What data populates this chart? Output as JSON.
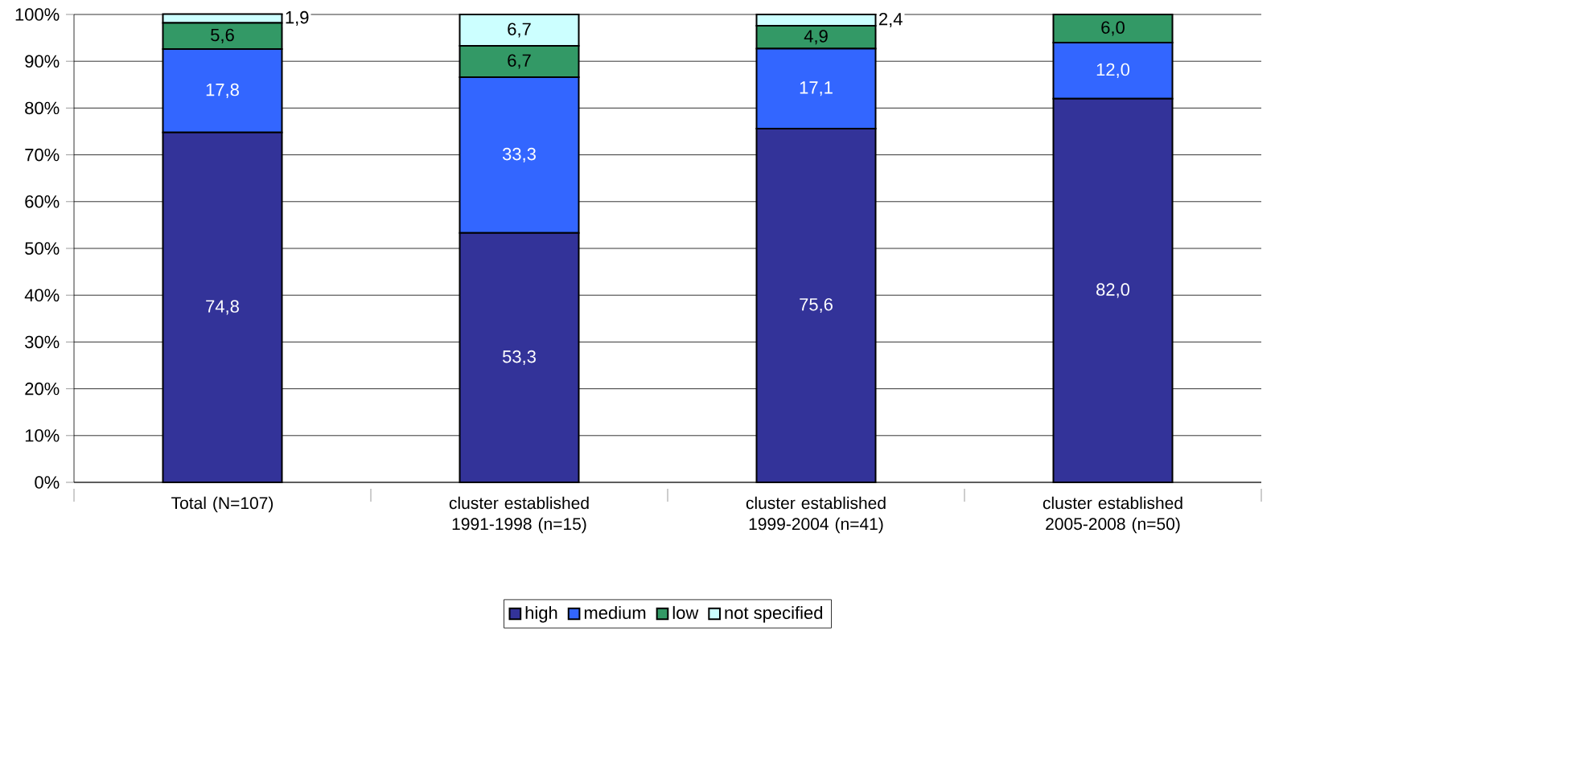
{
  "chart_data": {
    "type": "bar",
    "stacked": true,
    "categories": [
      "Total (N=107)",
      "cluster established 1991-1998 (n=15)",
      "cluster established 1999-2004 (n=41)",
      "cluster established 2005-2008 (n=50)"
    ],
    "series": [
      {
        "name": "high",
        "color": "#333399",
        "values": [
          74.8,
          53.3,
          75.6,
          82.0
        ],
        "value_labels": [
          "74,8",
          "53,3",
          "75,6",
          "82,0"
        ]
      },
      {
        "name": "medium",
        "color": "#3366ff",
        "values": [
          17.8,
          33.3,
          17.1,
          12.0
        ],
        "value_labels": [
          "17,8",
          "33,3",
          "17,1",
          "12,0"
        ]
      },
      {
        "name": "low",
        "color": "#339966",
        "values": [
          5.6,
          6.7,
          4.9,
          6.0
        ],
        "value_labels": [
          "5,6",
          "6,7",
          "4,9",
          "6,0"
        ]
      },
      {
        "name": "not specified",
        "color": "#ccffff",
        "values": [
          1.9,
          6.7,
          2.4,
          null
        ],
        "value_labels": [
          "1,9",
          "6,7",
          "2,4",
          null
        ]
      }
    ],
    "ylim": [
      0,
      100
    ],
    "yticks": [
      {
        "value": 0,
        "label": "0%"
      },
      {
        "value": 10,
        "label": "10%"
      },
      {
        "value": 20,
        "label": "20%"
      },
      {
        "value": 30,
        "label": "30%"
      },
      {
        "value": 40,
        "label": "40%"
      },
      {
        "value": 50,
        "label": "50%"
      },
      {
        "value": 60,
        "label": "60%"
      },
      {
        "value": 70,
        "label": "70%"
      },
      {
        "value": 80,
        "label": "80%"
      },
      {
        "value": 90,
        "label": "90%"
      },
      {
        "value": 100,
        "label": "100%"
      }
    ],
    "grid": "y",
    "legend": "bottom"
  }
}
